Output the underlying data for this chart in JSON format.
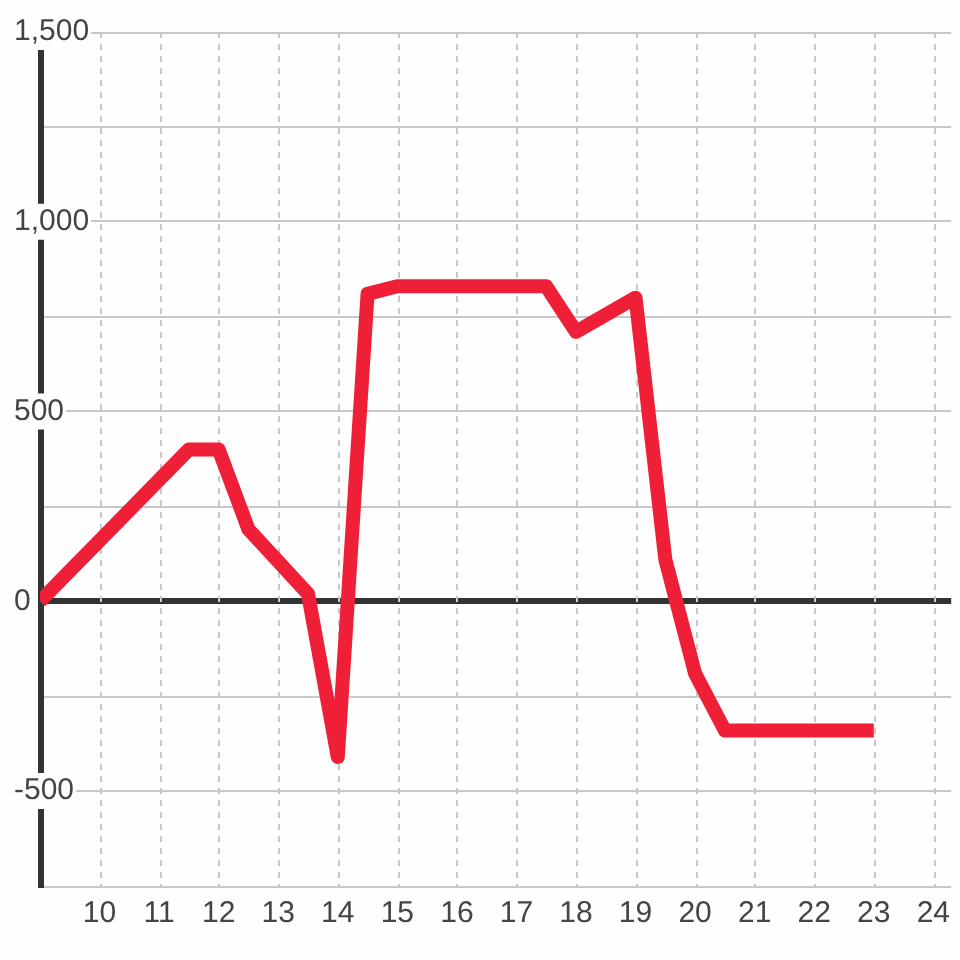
{
  "chart_data": {
    "type": "line",
    "x": [
      9,
      11.5,
      12,
      12.5,
      13.5,
      14,
      14.5,
      15,
      17.5,
      18,
      19,
      19.5,
      20,
      20.5,
      23
    ],
    "values": [
      0,
      400,
      400,
      190,
      20,
      -410,
      810,
      830,
      830,
      710,
      800,
      110,
      -190,
      -340,
      -340
    ],
    "color": "#ee1f36",
    "xlim": [
      9,
      24.3
    ],
    "xticks": [
      10,
      11,
      12,
      13,
      14,
      15,
      16,
      17,
      18,
      19,
      20,
      21,
      22,
      23,
      24
    ],
    "ylim": [
      -750,
      1500
    ],
    "yticks": [
      {
        "value": -750,
        "label": null
      },
      -500,
      {
        "value": -250,
        "label": null
      },
      0,
      {
        "value": 250,
        "label": null
      },
      500,
      {
        "value": 750,
        "label": null
      },
      {
        "value": 1000,
        "label": "1,000"
      },
      {
        "value": 1250,
        "label": null
      },
      {
        "value": 1500,
        "label": "1,500"
      }
    ],
    "grid": true
  }
}
